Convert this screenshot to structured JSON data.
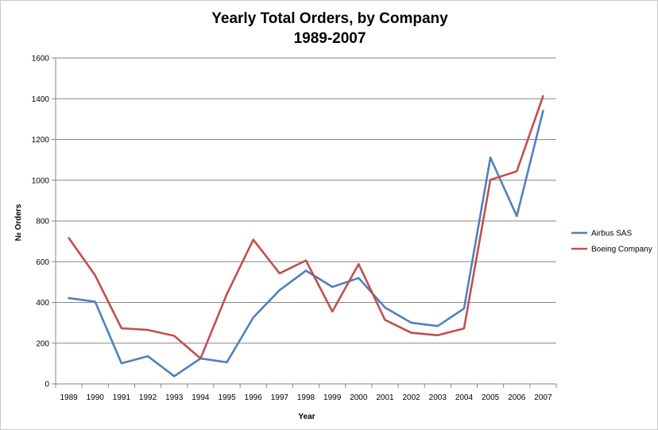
{
  "chart_data": {
    "type": "line",
    "title": "Yearly Total Orders, by Company",
    "subtitle": "1989-2007",
    "xlabel": "Year",
    "ylabel": "№ Orders",
    "categories": [
      "1989",
      "1990",
      "1991",
      "1992",
      "1993",
      "1994",
      "1995",
      "1996",
      "1997",
      "1998",
      "1999",
      "2000",
      "2001",
      "2002",
      "2003",
      "2004",
      "2005",
      "2006",
      "2007"
    ],
    "ylim": [
      0,
      1600
    ],
    "yticks": [
      0,
      200,
      400,
      600,
      800,
      1000,
      1200,
      1400,
      1600
    ],
    "grid": "horizontal",
    "legend_position": "right",
    "series": [
      {
        "name": "Airbus SAS",
        "color": "#4f81bd",
        "values": [
          421,
          404,
          101,
          136,
          38,
          125,
          106,
          326,
          460,
          556,
          476,
          520,
          375,
          300,
          284,
          370,
          1111,
          824,
          1341
        ]
      },
      {
        "name": "Boeing Company",
        "color": "#c0504d",
        "values": [
          716,
          533,
          273,
          265,
          236,
          125,
          441,
          708,
          543,
          606,
          355,
          588,
          314,
          251,
          239,
          272,
          1002,
          1044,
          1413
        ]
      }
    ]
  }
}
